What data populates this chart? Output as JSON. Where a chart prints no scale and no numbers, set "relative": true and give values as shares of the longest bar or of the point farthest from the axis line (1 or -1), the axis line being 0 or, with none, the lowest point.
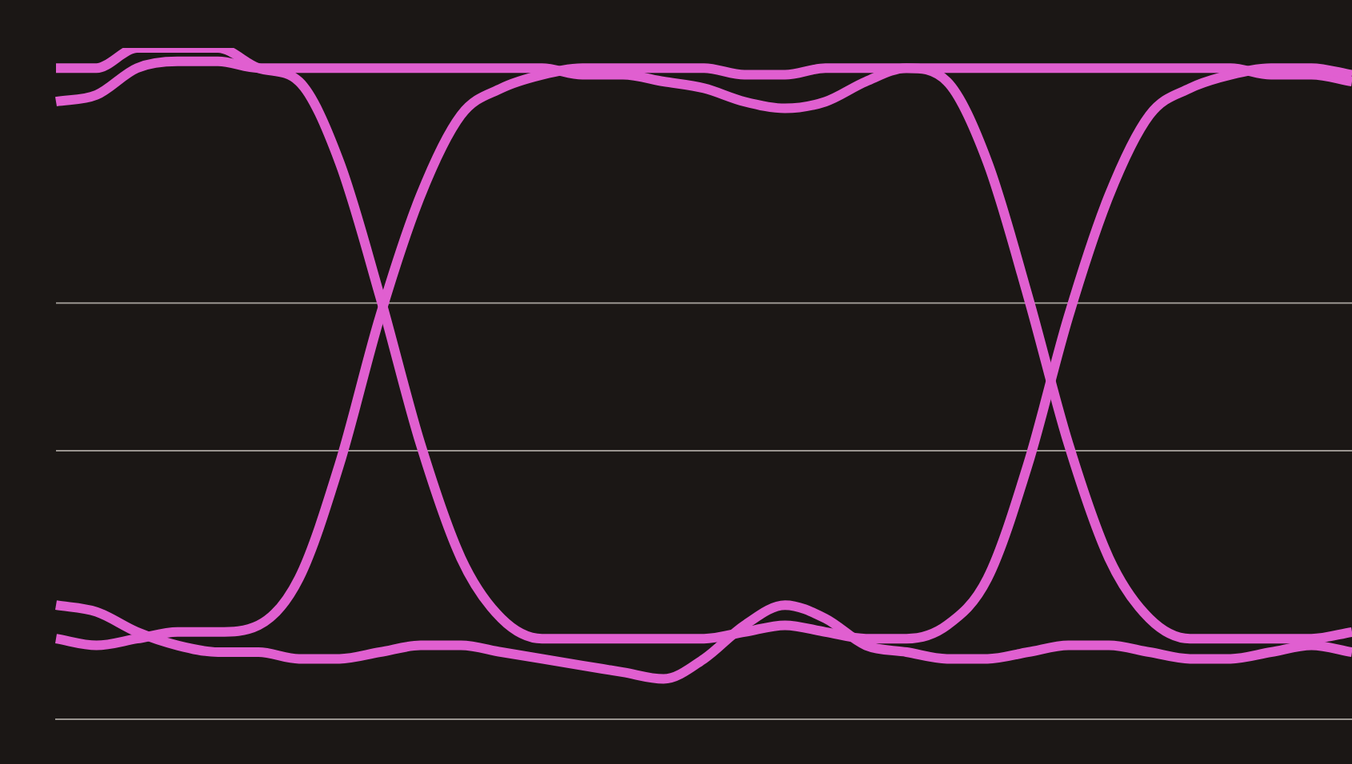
{
  "chart_data": {
    "type": "line",
    "relative": true,
    "categories": [
      null,
      null,
      null,
      null,
      null,
      null,
      null,
      null,
      null,
      null,
      null,
      null,
      null,
      null,
      null,
      null,
      null,
      null,
      null,
      null,
      null,
      null,
      null,
      null,
      null,
      null,
      null,
      null,
      null,
      null,
      null,
      null,
      null
    ],
    "series": [
      {
        "color": "#e05fd0",
        "values": [
          0.97,
          0.97,
          1,
          1,
          1,
          0.97,
          0.95,
          0.83,
          0.63,
          0.41,
          0.24,
          0.15,
          0.12,
          0.12,
          0.12,
          0.12,
          0.12,
          0.13,
          0.14,
          0.13,
          0.12,
          0.12,
          0.14,
          0.21,
          0.38,
          0.6,
          0.78,
          0.9,
          0.94,
          0.96,
          0.97,
          0.97,
          0.96
        ]
      },
      {
        "color": "#e05fd0",
        "values": [
          0.12,
          0.11,
          0.12,
          0.13,
          0.13,
          0.14,
          0.21,
          0.38,
          0.6,
          0.78,
          0.9,
          0.94,
          0.96,
          0.97,
          0.97,
          0.97,
          0.97,
          0.96,
          0.96,
          0.97,
          0.97,
          0.97,
          0.95,
          0.83,
          0.63,
          0.41,
          0.24,
          0.15,
          0.12,
          0.12,
          0.12,
          0.12,
          0.13
        ]
      },
      {
        "color": "#e05fd0",
        "values": [
          0.92,
          0.93,
          0.97,
          0.98,
          0.98,
          0.97,
          0.97,
          0.97,
          0.97,
          0.97,
          0.97,
          0.97,
          0.97,
          0.96,
          0.96,
          0.95,
          0.94,
          0.92,
          0.91,
          0.92,
          0.95,
          0.97,
          0.97,
          0.97,
          0.97,
          0.97,
          0.97,
          0.97,
          0.97,
          0.97,
          0.96,
          0.96,
          0.95
        ]
      },
      {
        "color": "#e05fd0",
        "values": [
          0.17,
          0.16,
          0.13,
          0.11,
          0.1,
          0.1,
          0.09,
          0.09,
          0.1,
          0.11,
          0.11,
          0.1,
          0.09,
          0.08,
          0.07,
          0.06,
          0.09,
          0.14,
          0.17,
          0.15,
          0.11,
          0.1,
          0.09,
          0.09,
          0.1,
          0.11,
          0.11,
          0.1,
          0.09,
          0.09,
          0.1,
          0.11,
          0.1
        ]
      }
    ],
    "ref_lines": [
      {
        "axis": "y",
        "value": 0.62,
        "color": "#9a9590"
      },
      {
        "axis": "y",
        "value": 0.4,
        "color": "#9a9590"
      }
    ],
    "legend": false
  }
}
